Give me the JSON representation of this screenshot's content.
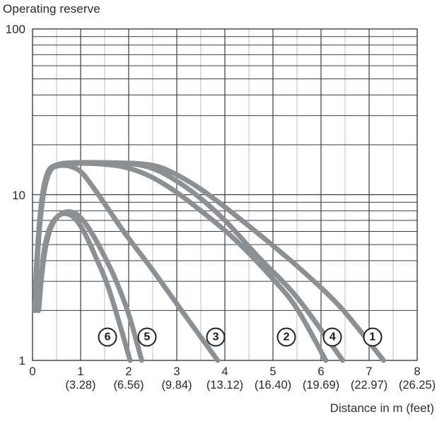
{
  "title": "Operating reserve",
  "colors": {
    "curve": "#8d9093",
    "grid_major": "#3e3e3e",
    "grid_minor": "#c9c9c9",
    "text": "#2a2a2a"
  },
  "x_axis": {
    "label": "Distance in m (feet)",
    "ticks": [
      {
        "m": "0",
        "feet": ""
      },
      {
        "m": "1",
        "feet": "(3.28)"
      },
      {
        "m": "2",
        "feet": "(6.56)"
      },
      {
        "m": "3",
        "feet": "(9.84)"
      },
      {
        "m": "4",
        "feet": "(13.12)"
      },
      {
        "m": "5",
        "feet": "(16.40)"
      },
      {
        "m": "6",
        "feet": "(19.69)"
      },
      {
        "m": "7",
        "feet": "(22.97)"
      },
      {
        "m": "8",
        "feet": "(26.25)"
      }
    ]
  },
  "y_axis": {
    "ticks": [
      {
        "text": "100",
        "value": 100
      },
      {
        "text": "10",
        "value": 10
      },
      {
        "text": "1",
        "value": 1
      }
    ]
  },
  "chart_data": {
    "type": "line",
    "title": "Operating reserve",
    "xlabel": "Distance in m (feet)",
    "ylabel": "Operating reserve",
    "x_range": [
      0,
      8
    ],
    "y_range": [
      1,
      100
    ],
    "y_scale": "log",
    "grid": "on",
    "x_major_step": 1,
    "x_minor_step": 0.5,
    "series": [
      {
        "name": "1",
        "points": [
          [
            0.05,
            2.0
          ],
          [
            0.09,
            3.6
          ],
          [
            0.15,
            6.5
          ],
          [
            0.24,
            10.5
          ],
          [
            0.36,
            13.8
          ],
          [
            0.55,
            15.2
          ],
          [
            0.9,
            15.6
          ],
          [
            1.6,
            15.6
          ],
          [
            2.2,
            15.4
          ],
          [
            2.6,
            14.8
          ],
          [
            3.0,
            13.2
          ],
          [
            3.5,
            10.8
          ],
          [
            4.1,
            8.0
          ],
          [
            4.8,
            5.5
          ],
          [
            5.6,
            3.5
          ],
          [
            6.4,
            2.1
          ],
          [
            7.3,
            1.0
          ]
        ]
      },
      {
        "name": "2",
        "points": [
          [
            0.05,
            2.0
          ],
          [
            0.08,
            3.6
          ],
          [
            0.14,
            6.6
          ],
          [
            0.22,
            10.6
          ],
          [
            0.33,
            13.9
          ],
          [
            0.5,
            15.1
          ],
          [
            0.8,
            15.4
          ],
          [
            1.3,
            15.4
          ],
          [
            1.9,
            14.7
          ],
          [
            2.4,
            13.1
          ],
          [
            2.9,
            10.8
          ],
          [
            3.5,
            8.0
          ],
          [
            4.2,
            5.4
          ],
          [
            5.0,
            3.1
          ],
          [
            5.5,
            2.05
          ],
          [
            6.1,
            1.0
          ]
        ]
      },
      {
        "name": "3",
        "points": [
          [
            0.05,
            2.1
          ],
          [
            0.09,
            3.8
          ],
          [
            0.15,
            7.0
          ],
          [
            0.23,
            11.0
          ],
          [
            0.35,
            13.9
          ],
          [
            0.52,
            14.9
          ],
          [
            0.75,
            14.9
          ],
          [
            1.0,
            13.8
          ],
          [
            1.25,
            11.2
          ],
          [
            1.55,
            8.4
          ],
          [
            1.95,
            5.7
          ],
          [
            2.5,
            3.5
          ],
          [
            3.1,
            2.0
          ],
          [
            3.85,
            1.0
          ]
        ]
      },
      {
        "name": "4",
        "points": [
          [
            0.05,
            2.0
          ],
          [
            0.09,
            3.6
          ],
          [
            0.15,
            6.6
          ],
          [
            0.24,
            10.6
          ],
          [
            0.35,
            13.9
          ],
          [
            0.52,
            15.2
          ],
          [
            0.85,
            15.6
          ],
          [
            1.5,
            15.6
          ],
          [
            2.1,
            15.3
          ],
          [
            2.5,
            14.4
          ],
          [
            2.9,
            12.6
          ],
          [
            3.4,
            10.0
          ],
          [
            4.0,
            7.0
          ],
          [
            4.7,
            4.2
          ],
          [
            5.5,
            2.4
          ],
          [
            6.45,
            1.0
          ]
        ]
      },
      {
        "name": "5",
        "points": [
          [
            0.13,
            2.0
          ],
          [
            0.18,
            3.0
          ],
          [
            0.26,
            4.6
          ],
          [
            0.38,
            6.3
          ],
          [
            0.55,
            7.5
          ],
          [
            0.75,
            7.9
          ],
          [
            0.95,
            7.5
          ],
          [
            1.15,
            6.4
          ],
          [
            1.4,
            4.8
          ],
          [
            1.7,
            3.2
          ],
          [
            2.0,
            1.9
          ],
          [
            2.27,
            1.0
          ]
        ]
      },
      {
        "name": "6",
        "points": [
          [
            0.12,
            2.0
          ],
          [
            0.17,
            3.0
          ],
          [
            0.24,
            4.6
          ],
          [
            0.35,
            6.2
          ],
          [
            0.5,
            7.3
          ],
          [
            0.68,
            7.7
          ],
          [
            0.88,
            7.2
          ],
          [
            1.08,
            5.9
          ],
          [
            1.3,
            4.3
          ],
          [
            1.55,
            2.9
          ],
          [
            1.8,
            1.7
          ],
          [
            2.03,
            1.0
          ]
        ]
      }
    ],
    "curve_labels": [
      {
        "digit": "6",
        "x": 1.56,
        "y": 1.38
      },
      {
        "digit": "5",
        "x": 2.38,
        "y": 1.38
      },
      {
        "digit": "3",
        "x": 3.81,
        "y": 1.38
      },
      {
        "digit": "2",
        "x": 5.28,
        "y": 1.38
      },
      {
        "digit": "4",
        "x": 6.24,
        "y": 1.38
      },
      {
        "digit": "1",
        "x": 7.07,
        "y": 1.38
      }
    ]
  }
}
